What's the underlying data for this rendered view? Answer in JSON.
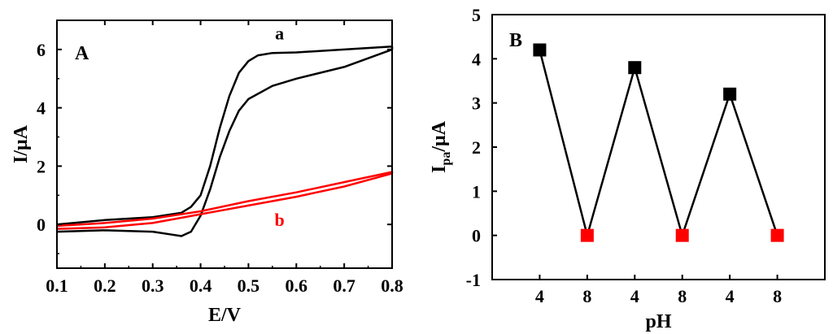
{
  "chart_data": [
    {
      "panel_label": "A",
      "type": "line",
      "xlabel": "E/V",
      "ylabel": "I/μA",
      "xlim": [
        0.1,
        0.8
      ],
      "ylim": [
        -1.5,
        7
      ],
      "xticks": [
        0.1,
        0.2,
        0.3,
        0.4,
        0.5,
        0.6,
        0.7,
        0.8
      ],
      "xtick_labels": [
        "0.1",
        "0.2",
        "0.3",
        "0.4",
        "0.5",
        "0.6",
        "0.7",
        "0.8"
      ],
      "yticks": [
        0,
        2,
        4,
        6
      ],
      "ytick_labels": [
        "0",
        "2",
        "4",
        "6"
      ],
      "series": [
        {
          "name": "a",
          "color": "#000000",
          "forward": [
            [
              0.1,
              -0.25
            ],
            [
              0.2,
              -0.2
            ],
            [
              0.3,
              -0.25
            ],
            [
              0.34,
              -0.35
            ],
            [
              0.36,
              -0.4
            ],
            [
              0.38,
              -0.25
            ],
            [
              0.4,
              0.3
            ],
            [
              0.42,
              1.2
            ],
            [
              0.44,
              2.3
            ],
            [
              0.46,
              3.2
            ],
            [
              0.48,
              3.9
            ],
            [
              0.5,
              4.3
            ],
            [
              0.55,
              4.75
            ],
            [
              0.6,
              5.0
            ],
            [
              0.7,
              5.4
            ],
            [
              0.8,
              6.0
            ]
          ],
          "reverse": [
            [
              0.8,
              6.1
            ],
            [
              0.7,
              6.0
            ],
            [
              0.6,
              5.9
            ],
            [
              0.55,
              5.88
            ],
            [
              0.52,
              5.8
            ],
            [
              0.5,
              5.6
            ],
            [
              0.48,
              5.2
            ],
            [
              0.46,
              4.4
            ],
            [
              0.44,
              3.3
            ],
            [
              0.42,
              2.0
            ],
            [
              0.4,
              1.0
            ],
            [
              0.38,
              0.6
            ],
            [
              0.36,
              0.4
            ],
            [
              0.3,
              0.25
            ],
            [
              0.2,
              0.15
            ],
            [
              0.1,
              0.0
            ]
          ]
        },
        {
          "name": "b",
          "color": "#ff0000",
          "forward": [
            [
              0.1,
              -0.15
            ],
            [
              0.2,
              -0.1
            ],
            [
              0.3,
              0.05
            ],
            [
              0.4,
              0.35
            ],
            [
              0.5,
              0.65
            ],
            [
              0.6,
              0.95
            ],
            [
              0.7,
              1.3
            ],
            [
              0.8,
              1.75
            ]
          ],
          "reverse": [
            [
              0.8,
              1.8
            ],
            [
              0.7,
              1.45
            ],
            [
              0.6,
              1.1
            ],
            [
              0.5,
              0.8
            ],
            [
              0.4,
              0.45
            ],
            [
              0.3,
              0.2
            ],
            [
              0.2,
              0.05
            ],
            [
              0.1,
              -0.05
            ]
          ]
        }
      ],
      "annotations": [
        {
          "text": "a",
          "x": 0.565,
          "y": 6.35,
          "color": "#000000"
        },
        {
          "text": "b",
          "x": 0.565,
          "y": -0.05,
          "color": "#ff0000"
        }
      ]
    },
    {
      "panel_label": "B",
      "type": "line",
      "xlabel": "pH",
      "ylabel_main": "I",
      "ylabel_sub": "pa",
      "ylabel_suffix": "/μA",
      "categories": [
        "4",
        "8",
        "4",
        "8",
        "4",
        "8"
      ],
      "xlim": [
        -0.5,
        6.5
      ],
      "ylim": [
        -1,
        5
      ],
      "yticks": [
        -1,
        0,
        1,
        2,
        3,
        4,
        5
      ],
      "ytick_labels": [
        "-1",
        "0",
        "1",
        "2",
        "3",
        "4",
        "5"
      ],
      "values": [
        4.2,
        0.0,
        3.8,
        0.0,
        3.2,
        0.0
      ],
      "marker_colors": [
        "#000000",
        "#ff0000",
        "#000000",
        "#ff0000",
        "#000000",
        "#ff0000"
      ]
    }
  ]
}
